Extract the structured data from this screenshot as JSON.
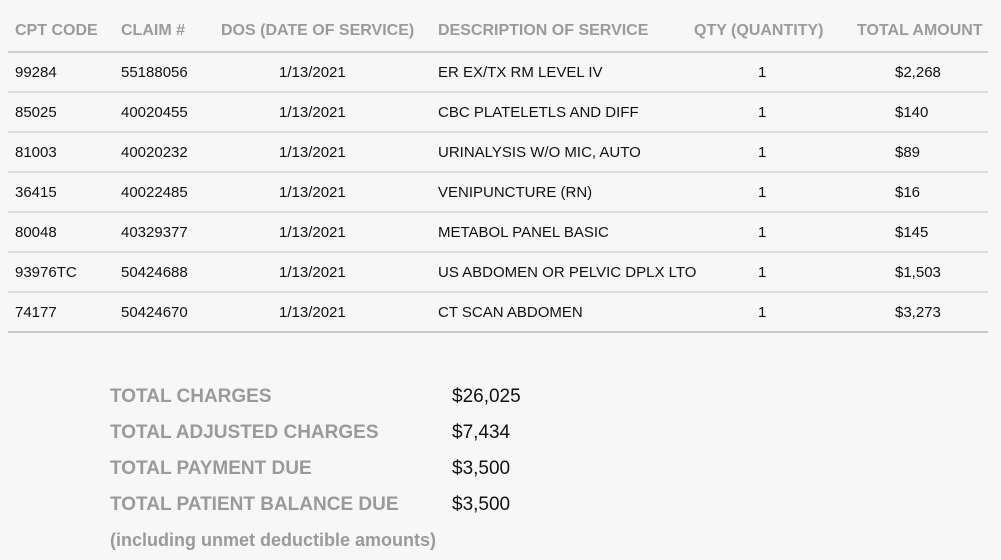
{
  "table": {
    "headers": [
      "CPT CODE",
      "CLAIM #",
      "DOS (DATE OF SERVICE)",
      "DESCRIPTION OF SERVICE",
      "QTY  (QUANTITY)",
      "TOTAL AMOUNT"
    ],
    "rows": [
      [
        "99284",
        "55188056",
        "1/13/2021",
        "ER EX/TX RM LEVEL IV",
        "1",
        "$2,268"
      ],
      [
        "85025",
        "40020455",
        "1/13/2021",
        "CBC PLATELETLS AND DIFF",
        "1",
        "$140"
      ],
      [
        "81003",
        "40020232",
        "1/13/2021",
        "URINALYSIS W/O MIC, AUTO",
        "1",
        "$89"
      ],
      [
        "36415",
        "40022485",
        "1/13/2021",
        "VENIPUNCTURE (RN)",
        "1",
        "$16"
      ],
      [
        "80048",
        "40329377",
        "1/13/2021",
        "METABOL PANEL BASIC",
        "1",
        "$145"
      ],
      [
        "93976TC",
        "50424688",
        "1/13/2021",
        "US ABDOMEN OR PELVIC DPLX LTO",
        "1",
        "$1,503"
      ],
      [
        "74177",
        "50424670",
        "1/13/2021",
        "CT SCAN ABDOMEN",
        "1",
        "$3,273"
      ]
    ]
  },
  "totals": [
    {
      "label": "TOTAL CHARGES",
      "value": "$26,025"
    },
    {
      "label": "TOTAL ADJUSTED CHARGES",
      "value": "$7,434"
    },
    {
      "label": "TOTAL PAYMENT DUE",
      "value": "$3,500"
    },
    {
      "label": "TOTAL PATIENT BALANCE DUE",
      "value": "$3,500"
    }
  ],
  "note": "(including unmet deductible amounts)"
}
